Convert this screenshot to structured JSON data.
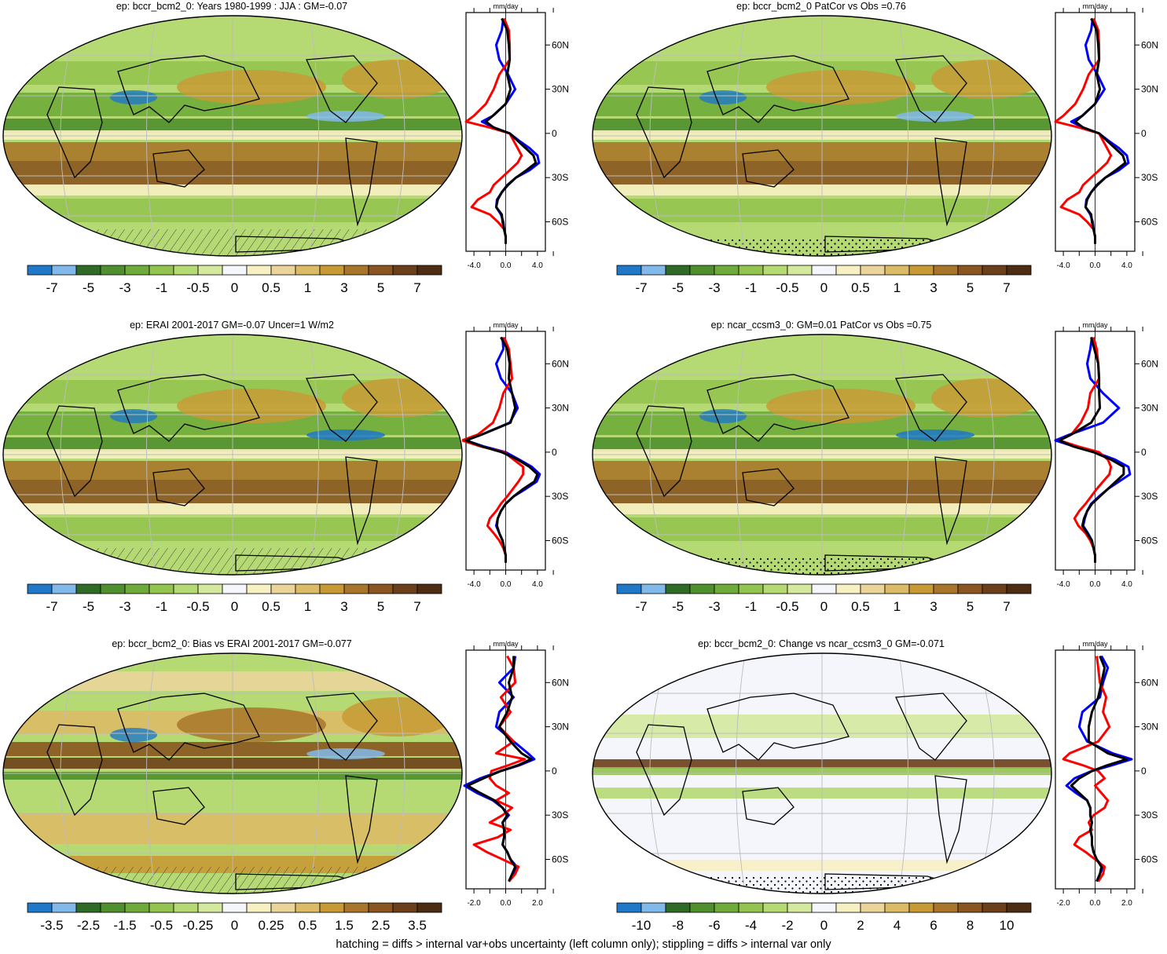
{
  "footer": "hatching = diffs > internal var+obs uncertainty (left column only); stippling = diffs > internal var only",
  "colors": {
    "palette": [
      "#1f78c8",
      "#81b9ea",
      "#2f6b27",
      "#4f8f2e",
      "#6fab3a",
      "#93c44f",
      "#b5d973",
      "#d4e99d",
      "#f4f6fb",
      "#f7f0c3",
      "#ead49a",
      "#dbbb66",
      "#c89a35",
      "#a8752a",
      "#8a5520",
      "#6b3f1a",
      "#4c2c12"
    ],
    "series_black": "#000000",
    "series_blue": "#0000ff",
    "series_red": "#ff0000"
  },
  "chart_data": [
    {
      "id": "p1",
      "type": "heatmap",
      "title": "ep: bccr_bcm2_0: Years 1980-1999 : JJA : GM=-0.07",
      "colorbar_labels": [
        "-7",
        "-5",
        "-3",
        "-1",
        "-0.5",
        "0",
        "0.5",
        "1",
        "3",
        "5",
        "7"
      ],
      "profile": {
        "unit": "mm/day",
        "x_ticks": [
          "-4.0",
          "0.0",
          "4.0"
        ],
        "xlim": [
          -5,
          5
        ],
        "y_ticks": [
          "60N",
          "30N",
          "0",
          "30S",
          "60S"
        ],
        "y_tick_values": [
          60,
          30,
          0,
          -30,
          -60
        ],
        "ylim": [
          -80,
          82
        ],
        "lat": [
          78,
          70,
          60,
          50,
          40,
          30,
          20,
          12,
          8,
          4,
          0,
          -5,
          -10,
          -15,
          -20,
          -25,
          -30,
          -35,
          -40,
          -45,
          -50,
          -55,
          -60,
          -65,
          -70,
          -75
        ],
        "series": [
          {
            "color": "black",
            "values": [
              -0.5,
              0.2,
              0.4,
              0.5,
              0.2,
              0.6,
              0,
              -1.6,
              -2.5,
              -1.5,
              0.5,
              1.5,
              2.5,
              3.5,
              3.8,
              2.6,
              1.3,
              0.3,
              -0.5,
              -1,
              -1.2,
              -0.5,
              -0.4,
              -0.2,
              0,
              0
            ]
          },
          {
            "color": "blue",
            "values": [
              -0.3,
              -0.5,
              -1.2,
              -0.8,
              0.3,
              1.2,
              0,
              -1.6,
              -3,
              -1.5,
              0.5,
              1.7,
              3,
              4,
              4.2,
              3,
              1.3,
              0.2,
              -0.5,
              -1.1,
              -1.2,
              -0.6,
              -0.3,
              -0.2,
              0,
              0
            ]
          },
          {
            "color": "red",
            "values": [
              -0.2,
              0.4,
              0.5,
              0.5,
              -0.8,
              -1.5,
              -2.5,
              -4,
              -5,
              -2,
              0.5,
              1,
              1.5,
              2,
              1.5,
              0.5,
              -0.5,
              -1.5,
              -2,
              -3.5,
              -4.3,
              -2,
              -1,
              -0.2,
              0,
              0
            ]
          }
        ]
      }
    },
    {
      "id": "p2",
      "type": "heatmap",
      "title": "ep: bccr_bcm2_0 PatCor vs Obs =0.76",
      "colorbar_labels": [
        "-7",
        "-5",
        "-3",
        "-1",
        "-0.5",
        "0",
        "0.5",
        "1",
        "3",
        "5",
        "7"
      ],
      "profile": {
        "unit": "mm/day",
        "x_ticks": [
          "-4.0",
          "0.0",
          "4.0"
        ],
        "xlim": [
          -5,
          5
        ],
        "y_ticks": [
          "60N",
          "30N",
          "0",
          "30S",
          "60S"
        ],
        "y_tick_values": [
          60,
          30,
          0,
          -30,
          -60
        ],
        "ylim": [
          -80,
          82
        ],
        "lat": [
          78,
          70,
          60,
          50,
          40,
          30,
          20,
          12,
          8,
          4,
          0,
          -5,
          -10,
          -15,
          -20,
          -25,
          -30,
          -35,
          -40,
          -45,
          -50,
          -55,
          -60,
          -65,
          -70,
          -75
        ],
        "series": [
          {
            "color": "black",
            "values": [
              -0.5,
              0.2,
              0.4,
              0.5,
              0.2,
              0.6,
              0,
              -1.6,
              -2.5,
              -1.5,
              0.5,
              1.5,
              2.5,
              3.5,
              3.8,
              2.6,
              1.3,
              0.3,
              -0.5,
              -1,
              -1.2,
              -0.5,
              -0.4,
              -0.2,
              0,
              0
            ]
          },
          {
            "color": "blue",
            "values": [
              -0.3,
              -0.5,
              -1.2,
              -0.8,
              0.3,
              1.2,
              0,
              -1.6,
              -3,
              -1.5,
              0.5,
              1.7,
              3,
              4,
              4.2,
              3,
              1.3,
              0.2,
              -0.5,
              -1.1,
              -1.2,
              -0.6,
              -0.3,
              -0.2,
              0,
              0
            ]
          },
          {
            "color": "red",
            "values": [
              -0.2,
              0.4,
              0.5,
              0.5,
              -0.8,
              -1.5,
              -2.5,
              -4,
              -5,
              -2,
              0.5,
              1,
              1.5,
              2,
              1.5,
              0.5,
              -0.5,
              -1.5,
              -2,
              -3.5,
              -4.3,
              -2,
              -1,
              -0.2,
              0,
              0
            ]
          }
        ]
      }
    },
    {
      "id": "p3",
      "type": "heatmap",
      "title": "ep: ERAI 2001-2017 GM=-0.07 Uncer=1 W/m2",
      "colorbar_labels": [
        "-7",
        "-5",
        "-3",
        "-1",
        "-0.5",
        "0",
        "0.5",
        "1",
        "3",
        "5",
        "7"
      ],
      "profile": {
        "unit": "mm/day",
        "x_ticks": [
          "-4.0",
          "0.0",
          "4.0"
        ],
        "xlim": [
          -5,
          5
        ],
        "y_ticks": [
          "60N",
          "30N",
          "0",
          "30S",
          "60S"
        ],
        "y_tick_values": [
          60,
          30,
          0,
          -30,
          -60
        ],
        "ylim": [
          -80,
          82
        ],
        "lat": [
          78,
          70,
          60,
          50,
          40,
          30,
          20,
          12,
          8,
          4,
          0,
          -5,
          -10,
          -15,
          -20,
          -25,
          -30,
          -35,
          -40,
          -45,
          -50,
          -55,
          -60,
          -65,
          -70,
          -75
        ],
        "series": [
          {
            "color": "black",
            "values": [
              -0.6,
              0.2,
              0.5,
              0.4,
              0.8,
              1.2,
              0.6,
              -3,
              -5,
              -3,
              -0.5,
              1.5,
              3,
              4,
              3.6,
              2.2,
              1,
              0,
              -0.6,
              -1,
              -1.1,
              -0.8,
              -0.4,
              -0.2,
              0,
              0
            ]
          },
          {
            "color": "blue",
            "values": [
              -0.4,
              -0.3,
              -1.2,
              -0.6,
              0.8,
              1.5,
              0.5,
              -3,
              -5,
              -2.8,
              0,
              1.7,
              3.3,
              4.3,
              3.9,
              2.5,
              1,
              0,
              -0.6,
              -1,
              -1.2,
              -0.8,
              -0.4,
              -0.2,
              0,
              0
            ]
          },
          {
            "color": "red",
            "values": [
              -0.2,
              0.4,
              0.6,
              0.8,
              -0.3,
              -0.8,
              -1.6,
              -3.5,
              -5.5,
              -3.2,
              -0.2,
              1,
              2.2,
              2.2,
              1.6,
              0.9,
              0.2,
              -0.6,
              -1.2,
              -2,
              -2.3,
              -1.5,
              -0.8,
              -0.3,
              0,
              0
            ]
          }
        ]
      }
    },
    {
      "id": "p4",
      "type": "heatmap",
      "title": "ep: ncar_ccsm3_0: GM=0.01 PatCor vs Obs =0.75",
      "colorbar_labels": [
        "-7",
        "-5",
        "-3",
        "-1",
        "-0.5",
        "0",
        "0.5",
        "1",
        "3",
        "5",
        "7"
      ],
      "profile": {
        "unit": "mm/day",
        "x_ticks": [
          "-4.0",
          "0.0",
          "4.0"
        ],
        "xlim": [
          -5,
          5
        ],
        "y_ticks": [
          "60N",
          "30N",
          "0",
          "30S",
          "60S"
        ],
        "y_tick_values": [
          60,
          30,
          0,
          -30,
          -60
        ],
        "ylim": [
          -80,
          82
        ],
        "lat": [
          78,
          70,
          60,
          50,
          40,
          30,
          20,
          12,
          8,
          4,
          0,
          -5,
          -10,
          -15,
          -20,
          -25,
          -30,
          -35,
          -40,
          -45,
          -50,
          -55,
          -60,
          -65,
          -70,
          -75
        ],
        "series": [
          {
            "color": "black",
            "values": [
              -0.5,
              -0.1,
              0.4,
              0.5,
              0.5,
              0.6,
              -0.5,
              -3,
              -4.5,
              -2.8,
              -0.2,
              2,
              3.6,
              3.6,
              2.6,
              1.6,
              0.6,
              -0.4,
              -1,
              -1.4,
              -1.6,
              -1,
              -0.4,
              -0.2,
              0,
              0
            ]
          },
          {
            "color": "blue",
            "values": [
              -0.4,
              -0.6,
              -1,
              -0.6,
              1,
              3,
              1,
              -3.2,
              -5,
              -2.7,
              0,
              2.5,
              4.2,
              4.4,
              3,
              1.6,
              0.5,
              -0.5,
              -1,
              -1.3,
              -1.5,
              -0.9,
              -0.4,
              -0.2,
              0,
              0
            ]
          },
          {
            "color": "red",
            "values": [
              -0.2,
              0.2,
              0.4,
              0.5,
              -0.6,
              -0.9,
              -1.8,
              -3,
              -4.5,
              -2.2,
              0.5,
              1.6,
              2,
              1.8,
              1,
              0.2,
              -0.5,
              -1.2,
              -2,
              -2.6,
              -2.1,
              -1.2,
              -0.6,
              -0.2,
              0,
              0
            ]
          }
        ]
      }
    },
    {
      "id": "p5",
      "type": "heatmap",
      "title": "ep: bccr_bcm2_0: Bias vs ERAI 2001-2017 GM=-0.077",
      "colorbar_labels": [
        "-3.5",
        "-2.5",
        "-1.5",
        "-0.5",
        "-0.25",
        "0",
        "0.25",
        "0.5",
        "1.5",
        "2.5",
        "3.5"
      ],
      "profile": {
        "unit": "mm/day",
        "x_ticks": [
          "-2.0",
          "0.0",
          "2.0"
        ],
        "xlim": [
          -2.5,
          2.5
        ],
        "y_ticks": [
          "60N",
          "30N",
          "0",
          "30S",
          "60S"
        ],
        "y_tick_values": [
          60,
          30,
          0,
          -30,
          -60
        ],
        "ylim": [
          -80,
          82
        ],
        "lat": [
          78,
          70,
          60,
          50,
          40,
          30,
          20,
          12,
          8,
          4,
          0,
          -5,
          -10,
          -15,
          -20,
          -25,
          -30,
          -35,
          -40,
          -45,
          -50,
          -55,
          -60,
          -65,
          -70,
          -75
        ],
        "series": [
          {
            "color": "black",
            "values": [
              0.5,
              0.5,
              0.2,
              0.4,
              0.1,
              -0.4,
              0.3,
              1,
              1.6,
              0.8,
              -0.3,
              -1.4,
              -2.4,
              -1.6,
              -0.7,
              -0.2,
              0.1,
              -0.2,
              -0.1,
              -0.1,
              -0.2,
              0.1,
              0.3,
              0.6,
              0.4,
              0.2
            ]
          },
          {
            "color": "blue",
            "values": [
              0.6,
              0.5,
              -0.4,
              0.5,
              -0.4,
              -0.6,
              0.5,
              1.4,
              1.8,
              0.9,
              -0.3,
              -1.6,
              -2.6,
              -1.8,
              -0.8,
              -0.2,
              0.2,
              -0.2,
              -0.1,
              -0.1,
              -0.2,
              0.1,
              0.3,
              0.7,
              0.5,
              0.2
            ]
          },
          {
            "color": "red",
            "values": [
              0.1,
              0.5,
              0.6,
              -0.3,
              0.3,
              -0.4,
              0.5,
              -0.6,
              1.2,
              0.2,
              -0.9,
              -1,
              -0.6,
              0.2,
              -0.6,
              0.4,
              -0.2,
              -1,
              0.3,
              -0.5,
              -2,
              -1.2,
              -0.2,
              0.8,
              0.6,
              0.2
            ]
          }
        ]
      }
    },
    {
      "id": "p6",
      "type": "heatmap",
      "title": "ep: bccr_bcm2_0: Change vs ncar_ccsm3_0 GM=-0.071",
      "colorbar_labels": [
        "-10",
        "-8",
        "-6",
        "-4",
        "-2",
        "0",
        "2",
        "4",
        "6",
        "8",
        "10"
      ],
      "profile": {
        "unit": "mm/day",
        "x_ticks": [
          "-2.0",
          "0.0",
          "2.0"
        ],
        "xlim": [
          -2.5,
          2.5
        ],
        "y_ticks": [
          "60N",
          "30N",
          "0",
          "30S",
          "60S"
        ],
        "y_tick_values": [
          60,
          30,
          0,
          -30,
          -60
        ],
        "ylim": [
          -80,
          82
        ],
        "lat": [
          78,
          70,
          60,
          50,
          40,
          30,
          20,
          12,
          8,
          4,
          0,
          -5,
          -10,
          -15,
          -20,
          -25,
          -30,
          -35,
          -40,
          -45,
          -50,
          -55,
          -60,
          -65,
          -70,
          -75
        ],
        "series": [
          {
            "color": "black",
            "values": [
              0.3,
              0.6,
              0.4,
              0.2,
              -0.2,
              -0.4,
              -0.4,
              0.8,
              2,
              0.8,
              -0.2,
              -1,
              -1.5,
              -1,
              -0.5,
              -0.3,
              -0.3,
              -0.2,
              -0.3,
              -0.2,
              -0.2,
              -0.1,
              0.1,
              0.4,
              0.3,
              0.1
            ]
          },
          {
            "color": "blue",
            "values": [
              0.4,
              0.8,
              0.5,
              0.3,
              -0.8,
              -1,
              -0.5,
              1.1,
              2.3,
              1.1,
              -0.2,
              -1.3,
              -1.8,
              -1.2,
              -0.5,
              -0.3,
              -0.3,
              -0.2,
              -0.3,
              -0.2,
              -0.2,
              -0.1,
              0.1,
              0.5,
              0.3,
              0.1
            ]
          },
          {
            "color": "red",
            "values": [
              0.1,
              0.2,
              0.3,
              0.7,
              0.5,
              0.9,
              0.2,
              -1.6,
              -2,
              -0.8,
              0.2,
              0.6,
              0,
              0.4,
              0.8,
              0.6,
              -0.1,
              -0.4,
              -0.2,
              -1,
              -1.3,
              -0.6,
              0,
              0.6,
              0.5,
              0.2
            ]
          }
        ]
      }
    }
  ]
}
